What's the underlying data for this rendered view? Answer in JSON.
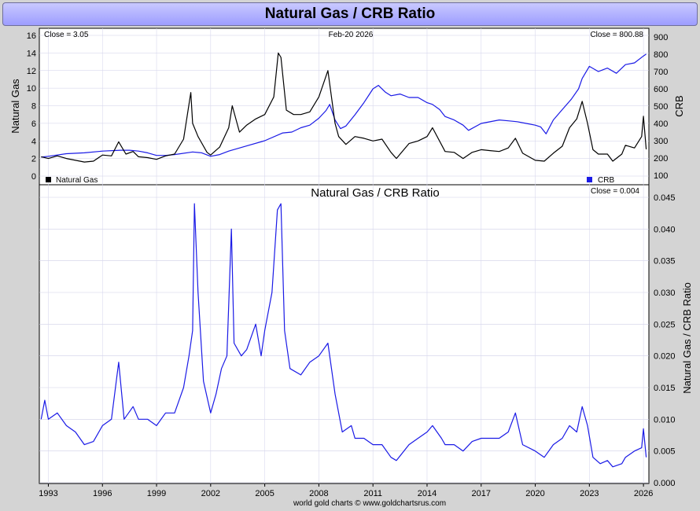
{
  "title": "Natural Gas / CRB Ratio",
  "footer": "world gold charts © www.goldchartsrus.com",
  "colors": {
    "natgas": "#000000",
    "crb": "#1a1ae6",
    "ratio": "#1a1ae6",
    "header": "#a6a6ff"
  },
  "chart_data": [
    {
      "type": "line",
      "title": "",
      "date_label": "Feb-20  2026",
      "left_close": "Close = 3.05",
      "right_close": "Close = 800.88",
      "ylabel": "Natural Gas",
      "y2label": "CRB",
      "ylim": [
        0,
        16
      ],
      "y2lim": [
        100,
        900
      ],
      "yticks": [
        "0",
        "2",
        "4",
        "6",
        "8",
        "10",
        "12",
        "14",
        "16"
      ],
      "y2ticks": [
        "100",
        "200",
        "300",
        "400",
        "500",
        "600",
        "700",
        "800",
        "900"
      ],
      "xlim": [
        1992.5,
        2026.3
      ],
      "legend": [
        "Natural Gas",
        "CRB"
      ],
      "legend_placement": "bottom",
      "series": [
        {
          "name": "Natural Gas",
          "axis": "left",
          "x": [
            1992.6,
            1993,
            1993.5,
            1994,
            1994.5,
            1995,
            1995.5,
            1996,
            1996.5,
            1996.9,
            1997.3,
            1997.7,
            1998,
            1998.5,
            1999,
            1999.5,
            2000,
            2000.5,
            2000.9,
            2001,
            2001.3,
            2001.8,
            2002,
            2002.5,
            2003,
            2003.2,
            2003.6,
            2004,
            2004.5,
            2005,
            2005.5,
            2005.75,
            2005.9,
            2006.2,
            2006.6,
            2007,
            2007.5,
            2008,
            2008.5,
            2008.9,
            2009.1,
            2009.5,
            2010,
            2010.5,
            2011,
            2011.5,
            2012,
            2012.3,
            2013,
            2013.5,
            2014,
            2014.3,
            2015,
            2015.5,
            2016,
            2016.5,
            2017,
            2017.5,
            2018,
            2018.5,
            2018.9,
            2019.3,
            2020,
            2020.5,
            2021,
            2021.5,
            2021.9,
            2022.3,
            2022.6,
            2022.9,
            2023.2,
            2023.5,
            2024,
            2024.3,
            2024.8,
            2025,
            2025.5,
            2025.9,
            2026,
            2026.15
          ],
          "values": [
            2.2,
            2.0,
            2.3,
            2.0,
            1.8,
            1.6,
            1.7,
            2.4,
            2.3,
            3.9,
            2.5,
            2.8,
            2.2,
            2.1,
            1.9,
            2.3,
            2.5,
            4.2,
            9.5,
            6.0,
            4.5,
            2.7,
            2.4,
            3.3,
            5.5,
            8.0,
            5.0,
            5.8,
            6.5,
            7.0,
            9.0,
            14.0,
            13.5,
            7.5,
            7.0,
            7.0,
            7.3,
            9.0,
            12.0,
            6.0,
            4.5,
            3.6,
            4.5,
            4.3,
            4.0,
            4.2,
            2.7,
            2.0,
            3.7,
            4.0,
            4.5,
            5.5,
            2.8,
            2.7,
            2.0,
            2.7,
            3.0,
            2.9,
            2.8,
            3.2,
            4.3,
            2.6,
            1.8,
            1.7,
            2.6,
            3.4,
            5.5,
            6.5,
            8.5,
            6.0,
            3.0,
            2.5,
            2.5,
            1.7,
            2.5,
            3.5,
            3.2,
            4.5,
            6.8,
            3.05
          ]
        },
        {
          "name": "CRB",
          "axis": "right",
          "x": [
            1992.6,
            1993,
            1994,
            1995,
            1996,
            1997,
            1997.5,
            1998,
            1998.5,
            1999,
            1999.5,
            2000,
            2001,
            2001.5,
            2002,
            2002.5,
            2003,
            2004,
            2005,
            2006,
            2006.5,
            2007,
            2007.5,
            2008,
            2008.4,
            2008.6,
            2008.9,
            2009.2,
            2009.5,
            2010,
            2010.5,
            2011,
            2011.3,
            2011.7,
            2012,
            2012.5,
            2013,
            2013.5,
            2014,
            2014.3,
            2014.7,
            2015,
            2015.5,
            2016,
            2016.3,
            2017,
            2018,
            2018.5,
            2019,
            2019.5,
            2020,
            2020.3,
            2020.6,
            2021,
            2021.5,
            2022,
            2022.4,
            2022.6,
            2023,
            2023.5,
            2024,
            2024.5,
            2025,
            2025.5,
            2026,
            2026.15
          ],
          "values": [
            205,
            210,
            225,
            230,
            240,
            245,
            245,
            240,
            230,
            215,
            215,
            220,
            235,
            230,
            210,
            220,
            240,
            270,
            300,
            345,
            350,
            375,
            390,
            430,
            475,
            510,
            420,
            370,
            385,
            450,
            520,
            600,
            620,
            580,
            560,
            570,
            550,
            550,
            520,
            510,
            480,
            440,
            420,
            390,
            360,
            400,
            420,
            415,
            410,
            400,
            390,
            380,
            340,
            420,
            480,
            540,
            600,
            660,
            730,
            700,
            720,
            690,
            740,
            750,
            790,
            801
          ]
        }
      ]
    },
    {
      "type": "line",
      "title": "Natural Gas  /  CRB Ratio",
      "right_close": "Close = 0.004",
      "y2label": "Natural Gas / CRB Ratio",
      "y2lim": [
        0,
        0.045
      ],
      "y2ticks": [
        "0.000",
        "0.005",
        "0.010",
        "0.015",
        "0.020",
        "0.025",
        "0.030",
        "0.035",
        "0.040",
        "0.045"
      ],
      "xlim": [
        1992.5,
        2026.3
      ],
      "xticks": [
        "1993",
        "1996",
        "1999",
        "2002",
        "2005",
        "2008",
        "2011",
        "2014",
        "2017",
        "2020",
        "2023",
        "2026"
      ],
      "series": [
        {
          "name": "Natural Gas / CRB Ratio",
          "axis": "right",
          "x": [
            1992.6,
            1992.8,
            1993,
            1993.5,
            1994,
            1994.5,
            1995,
            1995.5,
            1996,
            1996.5,
            1996.9,
            1997.2,
            1997.7,
            1998,
            1998.5,
            1999,
            1999.5,
            2000,
            2000.5,
            2000.8,
            2001,
            2001.1,
            2001.3,
            2001.6,
            2002,
            2002.3,
            2002.6,
            2002.9,
            2003.15,
            2003.3,
            2003.7,
            2004,
            2004.5,
            2004.8,
            2005,
            2005.4,
            2005.7,
            2005.9,
            2006.1,
            2006.4,
            2007,
            2007.5,
            2008,
            2008.5,
            2008.9,
            2009.3,
            2009.8,
            2010,
            2010.5,
            2011,
            2011.5,
            2012,
            2012.3,
            2013,
            2013.5,
            2014,
            2014.3,
            2014.8,
            2015,
            2015.5,
            2016,
            2016.5,
            2017,
            2017.5,
            2018,
            2018.5,
            2018.9,
            2019.3,
            2020,
            2020.5,
            2021,
            2021.5,
            2021.9,
            2022.3,
            2022.6,
            2022.9,
            2023.2,
            2023.6,
            2024,
            2024.3,
            2024.8,
            2025,
            2025.5,
            2025.9,
            2026,
            2026.15
          ],
          "values": [
            0.01,
            0.013,
            0.01,
            0.011,
            0.009,
            0.008,
            0.006,
            0.0065,
            0.009,
            0.01,
            0.019,
            0.01,
            0.012,
            0.01,
            0.01,
            0.009,
            0.011,
            0.011,
            0.015,
            0.02,
            0.024,
            0.044,
            0.03,
            0.016,
            0.011,
            0.014,
            0.018,
            0.02,
            0.04,
            0.022,
            0.02,
            0.021,
            0.025,
            0.02,
            0.024,
            0.03,
            0.043,
            0.044,
            0.024,
            0.018,
            0.017,
            0.019,
            0.02,
            0.022,
            0.014,
            0.008,
            0.009,
            0.007,
            0.007,
            0.006,
            0.006,
            0.004,
            0.0035,
            0.006,
            0.007,
            0.008,
            0.009,
            0.007,
            0.006,
            0.006,
            0.005,
            0.0065,
            0.007,
            0.007,
            0.007,
            0.008,
            0.011,
            0.006,
            0.005,
            0.004,
            0.006,
            0.007,
            0.009,
            0.008,
            0.012,
            0.009,
            0.004,
            0.003,
            0.0035,
            0.0025,
            0.003,
            0.004,
            0.005,
            0.0055,
            0.0085,
            0.004
          ]
        }
      ]
    }
  ]
}
